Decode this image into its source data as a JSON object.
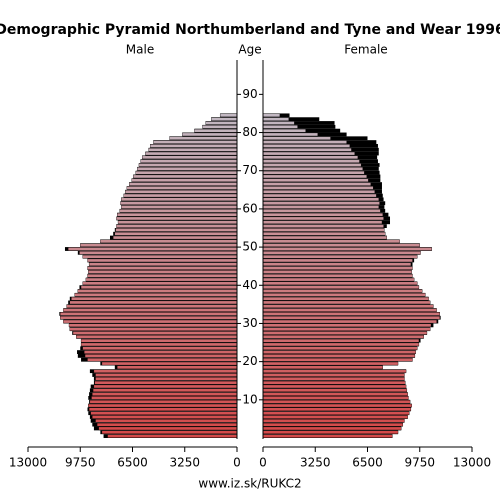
{
  "chart_data": {
    "type": "pyramid",
    "title": "Demographic Pyramid Northumberland and Tyne and Wear 1996",
    "axis_label": "Age",
    "source": "www.iz.sk/RUKC2",
    "x": [
      0,
      1,
      2,
      3,
      4,
      5,
      6,
      7,
      8,
      9,
      10,
      11,
      12,
      13,
      14,
      15,
      16,
      17,
      18,
      19,
      20,
      21,
      22,
      23,
      24,
      25,
      26,
      27,
      28,
      29,
      30,
      31,
      32,
      33,
      34,
      35,
      36,
      37,
      38,
      39,
      40,
      41,
      42,
      43,
      44,
      45,
      46,
      47,
      48,
      49,
      50,
      51,
      52,
      53,
      54,
      55,
      56,
      57,
      58,
      59,
      60,
      61,
      62,
      63,
      64,
      65,
      66,
      67,
      68,
      69,
      70,
      71,
      72,
      73,
      74,
      75,
      76,
      77,
      78,
      79,
      80,
      81,
      82,
      83,
      84
    ],
    "ylim": [
      0,
      99
    ],
    "yticks": [
      10,
      20,
      30,
      40,
      50,
      60,
      70,
      80,
      90
    ],
    "xlim": [
      0,
      13000
    ],
    "xticks": [
      0,
      3250,
      6500,
      9750,
      13000
    ],
    "colors": [
      "#d44848",
      "#c2b8c2"
    ],
    "excess_color": "#000000",
    "series": [
      {
        "name": "Male",
        "values": [
          8300,
          8500,
          8900,
          9000,
          9100,
          9150,
          9250,
          9300,
          9250,
          9200,
          9250,
          9200,
          9150,
          9100,
          8900,
          8900,
          9000,
          9150,
          7600,
          8500,
          9700,
          9900,
          9950,
          9750,
          9700,
          9700,
          10000,
          10250,
          10400,
          10450,
          10800,
          11000,
          11050,
          10800,
          10600,
          10500,
          10400,
          10100,
          9900,
          9800,
          9600,
          9400,
          9300,
          9250,
          9300,
          9200,
          9300,
          9600,
          9900,
          10700,
          9750,
          8500,
          7900,
          7700,
          7600,
          7500,
          7400,
          7500,
          7450,
          7300,
          7200,
          7250,
          7200,
          7050,
          6950,
          6850,
          6700,
          6550,
          6450,
          6300,
          6200,
          6100,
          6000,
          5900,
          5700,
          5500,
          5400,
          5200,
          4200,
          3400,
          2650,
          2150,
          1950,
          1600,
          1050
        ]
      },
      {
        "name": "Female",
        "values": [
          8050,
          8400,
          8600,
          8700,
          8800,
          9000,
          9100,
          9200,
          9250,
          9150,
          9050,
          9000,
          8950,
          8900,
          8850,
          8800,
          8800,
          8900,
          7450,
          8400,
          9300,
          9450,
          9500,
          9600,
          9700,
          9800,
          10000,
          10200,
          10400,
          10600,
          10900,
          11050,
          11000,
          10800,
          10600,
          10400,
          10300,
          10100,
          9900,
          9700,
          9600,
          9400,
          9300,
          9250,
          9300,
          9300,
          9400,
          9600,
          9800,
          10500,
          9750,
          8500,
          7700,
          7600,
          7550,
          7700,
          7900,
          7900,
          7800,
          7600,
          7550,
          7600,
          7500,
          7450,
          7400,
          7400,
          7400,
          7300,
          7300,
          7250,
          7200,
          7250,
          7150,
          7100,
          7200,
          7200,
          7150,
          7050,
          6500,
          5200,
          4800,
          4500,
          4450,
          3500,
          1650
        ]
      }
    ]
  }
}
